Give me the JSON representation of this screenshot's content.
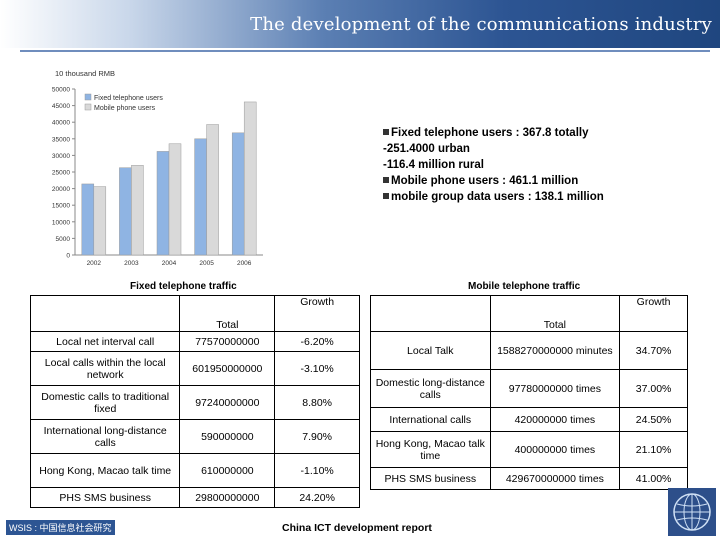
{
  "header": {
    "title": "The development of the communications industry"
  },
  "chart_data": {
    "type": "bar",
    "ylabel": "10 thousand RMB",
    "categories": [
      "2002",
      "2003",
      "2004",
      "2005",
      "2006"
    ],
    "ylim": [
      0,
      50000
    ],
    "yticks": [
      0,
      5000,
      10000,
      15000,
      20000,
      25000,
      30000,
      35000,
      40000,
      45000,
      50000
    ],
    "legend_position": "top-left",
    "grid": false,
    "series": [
      {
        "name": "Fixed telephone users",
        "color": "#8fb4e3",
        "values": [
          21400,
          26300,
          31200,
          35000,
          36800
        ]
      },
      {
        "name": "Mobile phone users",
        "color": "#d9d9d9",
        "values": [
          20600,
          27000,
          33500,
          39300,
          46100
        ]
      }
    ]
  },
  "summary": {
    "lines": [
      {
        "bullet": true,
        "text": "Fixed telephone users : 367.8 totally"
      },
      {
        "bullet": false,
        "text": "-251.4000 urban"
      },
      {
        "bullet": false,
        "text": "-116.4 million  rural"
      },
      {
        "bullet": true,
        "text": "Mobile phone users : 461.1 million"
      },
      {
        "bullet": true,
        "text": "mobile group data users  : 138.1 million"
      }
    ]
  },
  "fixed_traffic": {
    "caption": "Fixed telephone traffic",
    "header_total": "Total",
    "header_growth": "Growth",
    "rows": [
      {
        "name": "Local net interval call",
        "total": "77570000000",
        "growth": "-6.20%"
      },
      {
        "name": "Local calls within the local network",
        "total": "601950000000",
        "growth": "-3.10%"
      },
      {
        "name": "Domestic calls to traditional fixed",
        "total": "97240000000",
        "growth": "8.80%"
      },
      {
        "name": "International long-distance calls",
        "total": "590000000",
        "growth": "7.90%"
      },
      {
        "name": "Hong Kong, Macao talk time",
        "total": "610000000",
        "growth": "-1.10%"
      },
      {
        "name": "PHS SMS business",
        "total": "29800000000",
        "growth": "24.20%"
      }
    ]
  },
  "mobile_traffic": {
    "caption": "Mobile telephone traffic",
    "header_total": "Total",
    "header_growth": "Growth",
    "rows": [
      {
        "name": "Local Talk",
        "total": "1588270000000 minutes",
        "growth": "34.70%"
      },
      {
        "name": "Domestic long-distance calls",
        "total": "97780000000 times",
        "growth": "37.00%"
      },
      {
        "name": "International calls",
        "total": "420000000 times",
        "growth": "24.50%"
      },
      {
        "name": "Hong Kong, Macao talk time",
        "total": "400000000 times",
        "growth": "21.10%"
      },
      {
        "name": "PHS SMS business",
        "total": "429670000000 times",
        "growth": "41.00%"
      }
    ]
  },
  "footer": {
    "left": "WSIS : 中国信息社会研究",
    "source": "China ICT development report"
  },
  "logo": {
    "icon": "globe-icon"
  }
}
